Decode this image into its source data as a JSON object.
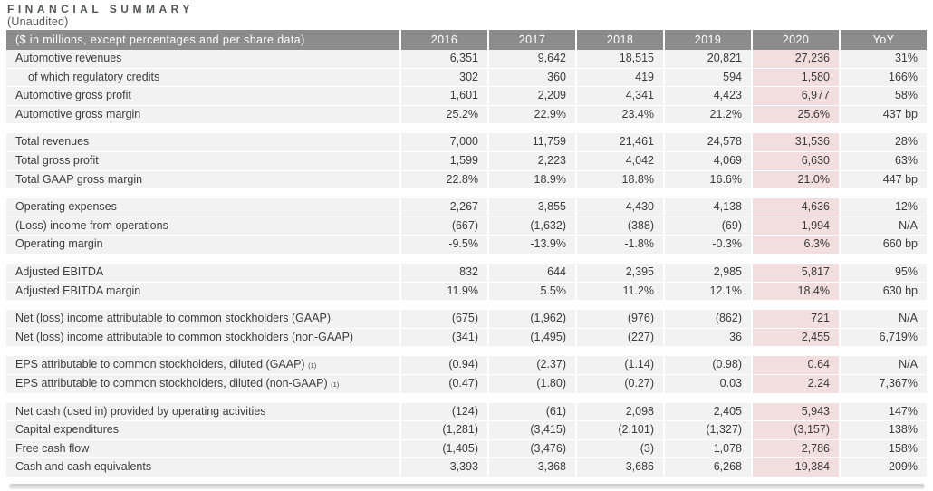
{
  "page": {
    "title": "FINANCIAL SUMMARY",
    "subtitle": "(Unaudited)"
  },
  "colors": {
    "header_bg": "#8c8c8c",
    "header_text": "#ffffff",
    "row_bg": "#f2f2f2",
    "highlight_cell_bg": "#f2dede",
    "highlight_band_bg": "#fcf3f3",
    "body_text": "#3d3d3d"
  },
  "table": {
    "header": {
      "label": "($ in millions, except percentages and per share data)",
      "columns": [
        "2016",
        "2017",
        "2018",
        "2019",
        "2020",
        "YoY"
      ]
    },
    "highlight_column_index": 4,
    "sections": [
      {
        "rows": [
          {
            "label": "Automotive revenues",
            "indent": false,
            "sup": "",
            "values": [
              "6,351",
              "9,642",
              "18,515",
              "20,821",
              "27,236",
              "31%"
            ]
          },
          {
            "label": "of which regulatory credits",
            "indent": true,
            "sup": "",
            "values": [
              "302",
              "360",
              "419",
              "594",
              "1,580",
              "166%"
            ]
          },
          {
            "label": "Automotive gross profit",
            "indent": false,
            "sup": "",
            "values": [
              "1,601",
              "2,209",
              "4,341",
              "4,423",
              "6,977",
              "58%"
            ]
          },
          {
            "label": "Automotive gross margin",
            "indent": false,
            "sup": "",
            "values": [
              "25.2%",
              "22.9%",
              "23.4%",
              "21.2%",
              "25.6%",
              "437 bp"
            ]
          }
        ]
      },
      {
        "rows": [
          {
            "label": "Total revenues",
            "indent": false,
            "sup": "",
            "values": [
              "7,000",
              "11,759",
              "21,461",
              "24,578",
              "31,536",
              "28%"
            ]
          },
          {
            "label": "Total gross profit",
            "indent": false,
            "sup": "",
            "values": [
              "1,599",
              "2,223",
              "4,042",
              "4,069",
              "6,630",
              "63%"
            ]
          },
          {
            "label": "Total GAAP gross margin",
            "indent": false,
            "sup": "",
            "values": [
              "22.8%",
              "18.9%",
              "18.8%",
              "16.6%",
              "21.0%",
              "447 bp"
            ]
          }
        ]
      },
      {
        "rows": [
          {
            "label": "Operating expenses",
            "indent": false,
            "sup": "",
            "values": [
              "2,267",
              "3,855",
              "4,430",
              "4,138",
              "4,636",
              "12%"
            ]
          },
          {
            "label": "(Loss) income from operations",
            "indent": false,
            "sup": "",
            "values": [
              "(667)",
              "(1,632)",
              "(388)",
              "(69)",
              "1,994",
              "N/A"
            ]
          },
          {
            "label": "Operating margin",
            "indent": false,
            "sup": "",
            "values": [
              "-9.5%",
              "-13.9%",
              "-1.8%",
              "-0.3%",
              "6.3%",
              "660 bp"
            ]
          }
        ]
      },
      {
        "rows": [
          {
            "label": "Adjusted EBITDA",
            "indent": false,
            "sup": "",
            "values": [
              "832",
              "644",
              "2,395",
              "2,985",
              "5,817",
              "95%"
            ]
          },
          {
            "label": "Adjusted EBITDA margin",
            "indent": false,
            "sup": "",
            "values": [
              "11.9%",
              "5.5%",
              "11.2%",
              "12.1%",
              "18.4%",
              "630 bp"
            ]
          }
        ]
      },
      {
        "rows": [
          {
            "label": "Net (loss) income attributable to common stockholders (GAAP)",
            "indent": false,
            "sup": "",
            "values": [
              "(675)",
              "(1,962)",
              "(976)",
              "(862)",
              "721",
              "N/A"
            ]
          },
          {
            "label": "Net (loss) income attributable to common stockholders (non-GAAP)",
            "indent": false,
            "sup": "",
            "values": [
              "(341)",
              "(1,495)",
              "(227)",
              "36",
              "2,455",
              "6,719%"
            ]
          }
        ]
      },
      {
        "rows": [
          {
            "label": "EPS attributable to common stockholders, diluted (GAAP) ",
            "indent": false,
            "sup": "(1)",
            "values": [
              "(0.94)",
              "(2.37)",
              "(1.14)",
              "(0.98)",
              "0.64",
              "N/A"
            ]
          },
          {
            "label": "EPS attributable to common stockholders, diluted (non-GAAP) ",
            "indent": false,
            "sup": "(1)",
            "values": [
              "(0.47)",
              "(1.80)",
              "(0.27)",
              "0.03",
              "2.24",
              "7,367%"
            ]
          }
        ]
      },
      {
        "rows": [
          {
            "label": "Net cash (used in) provided by operating activities",
            "indent": false,
            "sup": "",
            "values": [
              "(124)",
              "(61)",
              "2,098",
              "2,405",
              "5,943",
              "147%"
            ]
          },
          {
            "label": "Capital expenditures",
            "indent": false,
            "sup": "",
            "values": [
              "(1,281)",
              "(3,415)",
              "(2,101)",
              "(1,327)",
              "(3,157)",
              "138%"
            ]
          },
          {
            "label": "Free cash flow",
            "indent": false,
            "sup": "",
            "values": [
              "(1,405)",
              "(3,476)",
              "(3)",
              "1,078",
              "2,786",
              "158%"
            ]
          },
          {
            "label": "Cash and cash equivalents",
            "indent": false,
            "sup": "",
            "values": [
              "3,393",
              "3,368",
              "3,686",
              "6,268",
              "19,384",
              "209%"
            ]
          }
        ]
      }
    ]
  }
}
